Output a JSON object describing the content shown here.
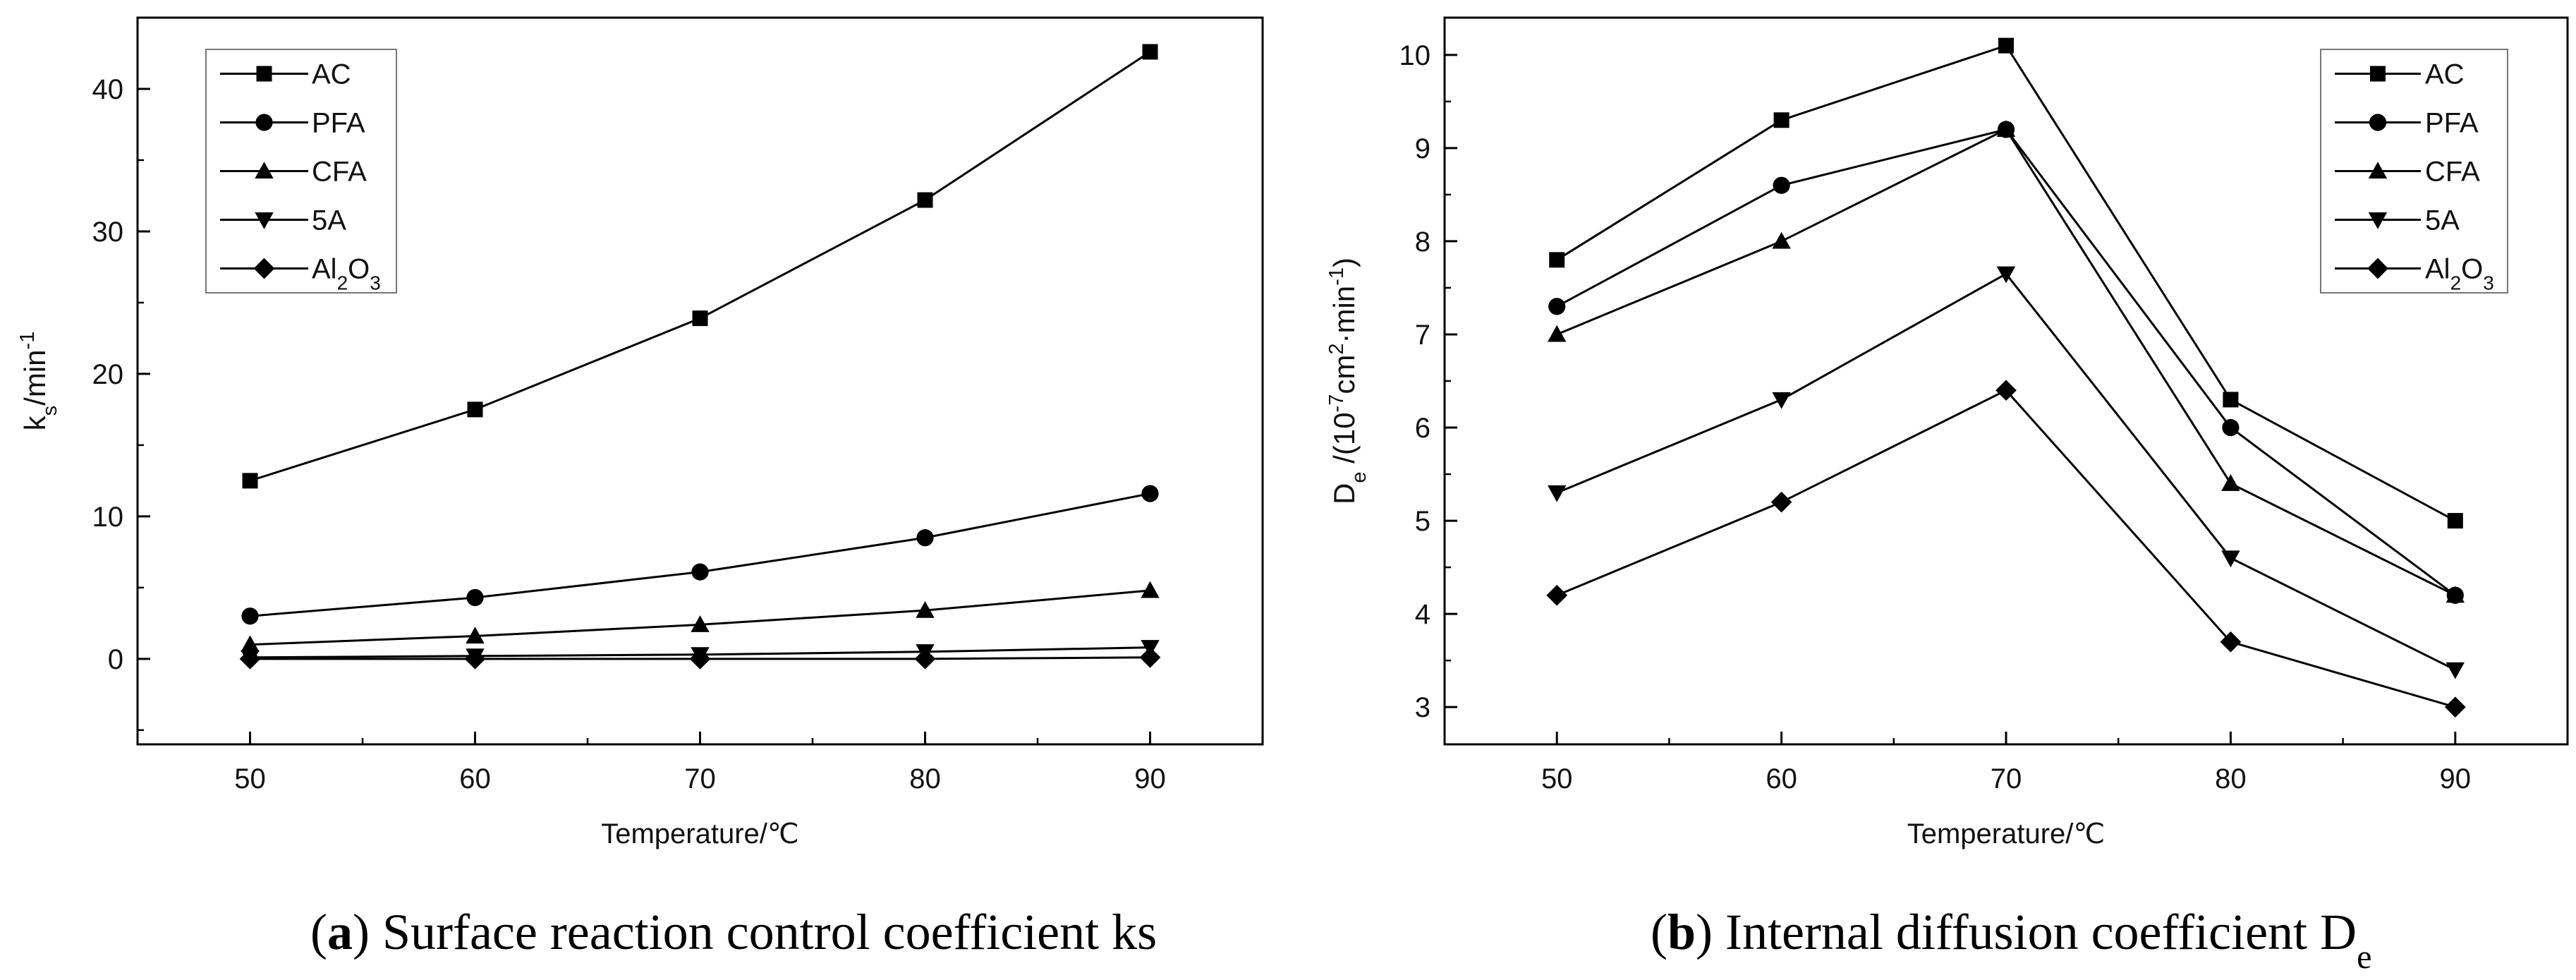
{
  "chart_data": [
    {
      "id": "a",
      "type": "line",
      "title": "",
      "caption": {
        "letter": "a",
        "text": "Surface reaction control coefficient ks"
      },
      "xlabel": "Temperature/℃",
      "ylabel": {
        "main": "k",
        "sub": "s",
        "rest": "/min",
        "sup": "-1"
      },
      "x": [
        50,
        60,
        70,
        80,
        90
      ],
      "xlim": [
        45,
        95
      ],
      "ylim": [
        -6,
        45
      ],
      "yticks": [
        0,
        10,
        20,
        30,
        40
      ],
      "series": [
        {
          "name": "AC",
          "marker": "square",
          "values": [
            12.5,
            17.5,
            23.9,
            32.2,
            42.6
          ]
        },
        {
          "name": "PFA",
          "marker": "circle",
          "values": [
            3.0,
            4.3,
            6.1,
            8.5,
            11.6
          ]
        },
        {
          "name": "CFA",
          "marker": "triangle-up",
          "values": [
            1.0,
            1.6,
            2.4,
            3.4,
            4.8
          ]
        },
        {
          "name": "5A",
          "marker": "triangle-down",
          "values": [
            0.1,
            0.2,
            0.3,
            0.5,
            0.8
          ]
        },
        {
          "name": "Al2O3",
          "display": {
            "parts": [
              {
                "t": "Al"
              },
              {
                "t": "2",
                "sub": true
              },
              {
                "t": "O"
              },
              {
                "t": "3",
                "sub": true
              }
            ]
          },
          "marker": "diamond",
          "values": [
            0.0,
            0.0,
            0.0,
            0.0,
            0.1
          ]
        }
      ],
      "legend": "top-left"
    },
    {
      "id": "b",
      "type": "line",
      "title": "",
      "caption": {
        "letter": "b",
        "text": "Internal diffusion coefficient D",
        "sub": "e"
      },
      "xlabel": "Temperature/℃",
      "ylabel": {
        "main": "D",
        "sub": "e",
        "p1": " /(10",
        "sup1": "-7",
        "p2": "cm",
        "sup2": "2",
        "p3": "·min",
        "sup3": "-1",
        "p4": ")"
      },
      "x": [
        50,
        60,
        70,
        80,
        90
      ],
      "xlim": [
        45,
        95
      ],
      "ylim": [
        2.6,
        10.4
      ],
      "yticks": [
        3,
        4,
        5,
        6,
        7,
        8,
        9,
        10
      ],
      "series": [
        {
          "name": "AC",
          "marker": "square",
          "values": [
            7.8,
            9.3,
            10.1,
            6.3,
            5.0
          ]
        },
        {
          "name": "PFA",
          "marker": "circle",
          "values": [
            7.3,
            8.6,
            9.2,
            6.0,
            4.2
          ]
        },
        {
          "name": "CFA",
          "marker": "triangle-up",
          "values": [
            7.0,
            8.0,
            9.2,
            5.4,
            4.2
          ]
        },
        {
          "name": "5A",
          "marker": "triangle-down",
          "values": [
            5.3,
            6.3,
            7.65,
            4.6,
            3.4
          ]
        },
        {
          "name": "Al2O3",
          "display": {
            "parts": [
              {
                "t": "Al"
              },
              {
                "t": "2",
                "sub": true
              },
              {
                "t": "O"
              },
              {
                "t": "3",
                "sub": true
              }
            ]
          },
          "marker": "diamond",
          "values": [
            4.2,
            5.2,
            6.4,
            3.7,
            3.0
          ]
        }
      ],
      "legend": "top-right"
    }
  ]
}
